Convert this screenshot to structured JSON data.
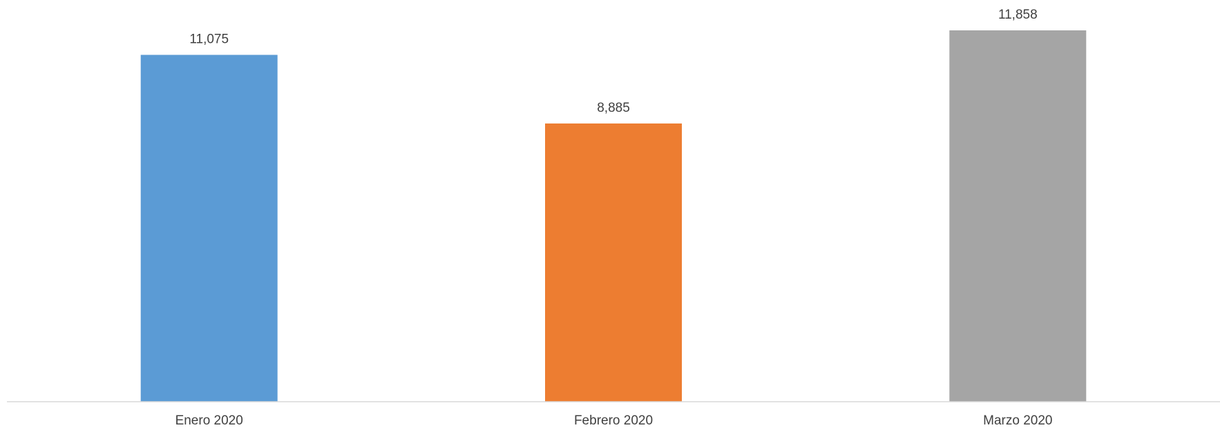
{
  "chart_data": {
    "type": "bar",
    "categories": [
      "Enero 2020",
      "Febrero 2020",
      "Marzo 2020"
    ],
    "values": [
      11075,
      8885,
      11858
    ],
    "value_labels": [
      "11,075",
      "8,885",
      "11,858"
    ],
    "colors": [
      "#5B9BD5",
      "#ED7D31",
      "#A5A5A5"
    ],
    "ylim": [
      0,
      11858
    ],
    "grid": false,
    "legend": "none",
    "title": "",
    "xlabel": "",
    "ylabel": ""
  }
}
